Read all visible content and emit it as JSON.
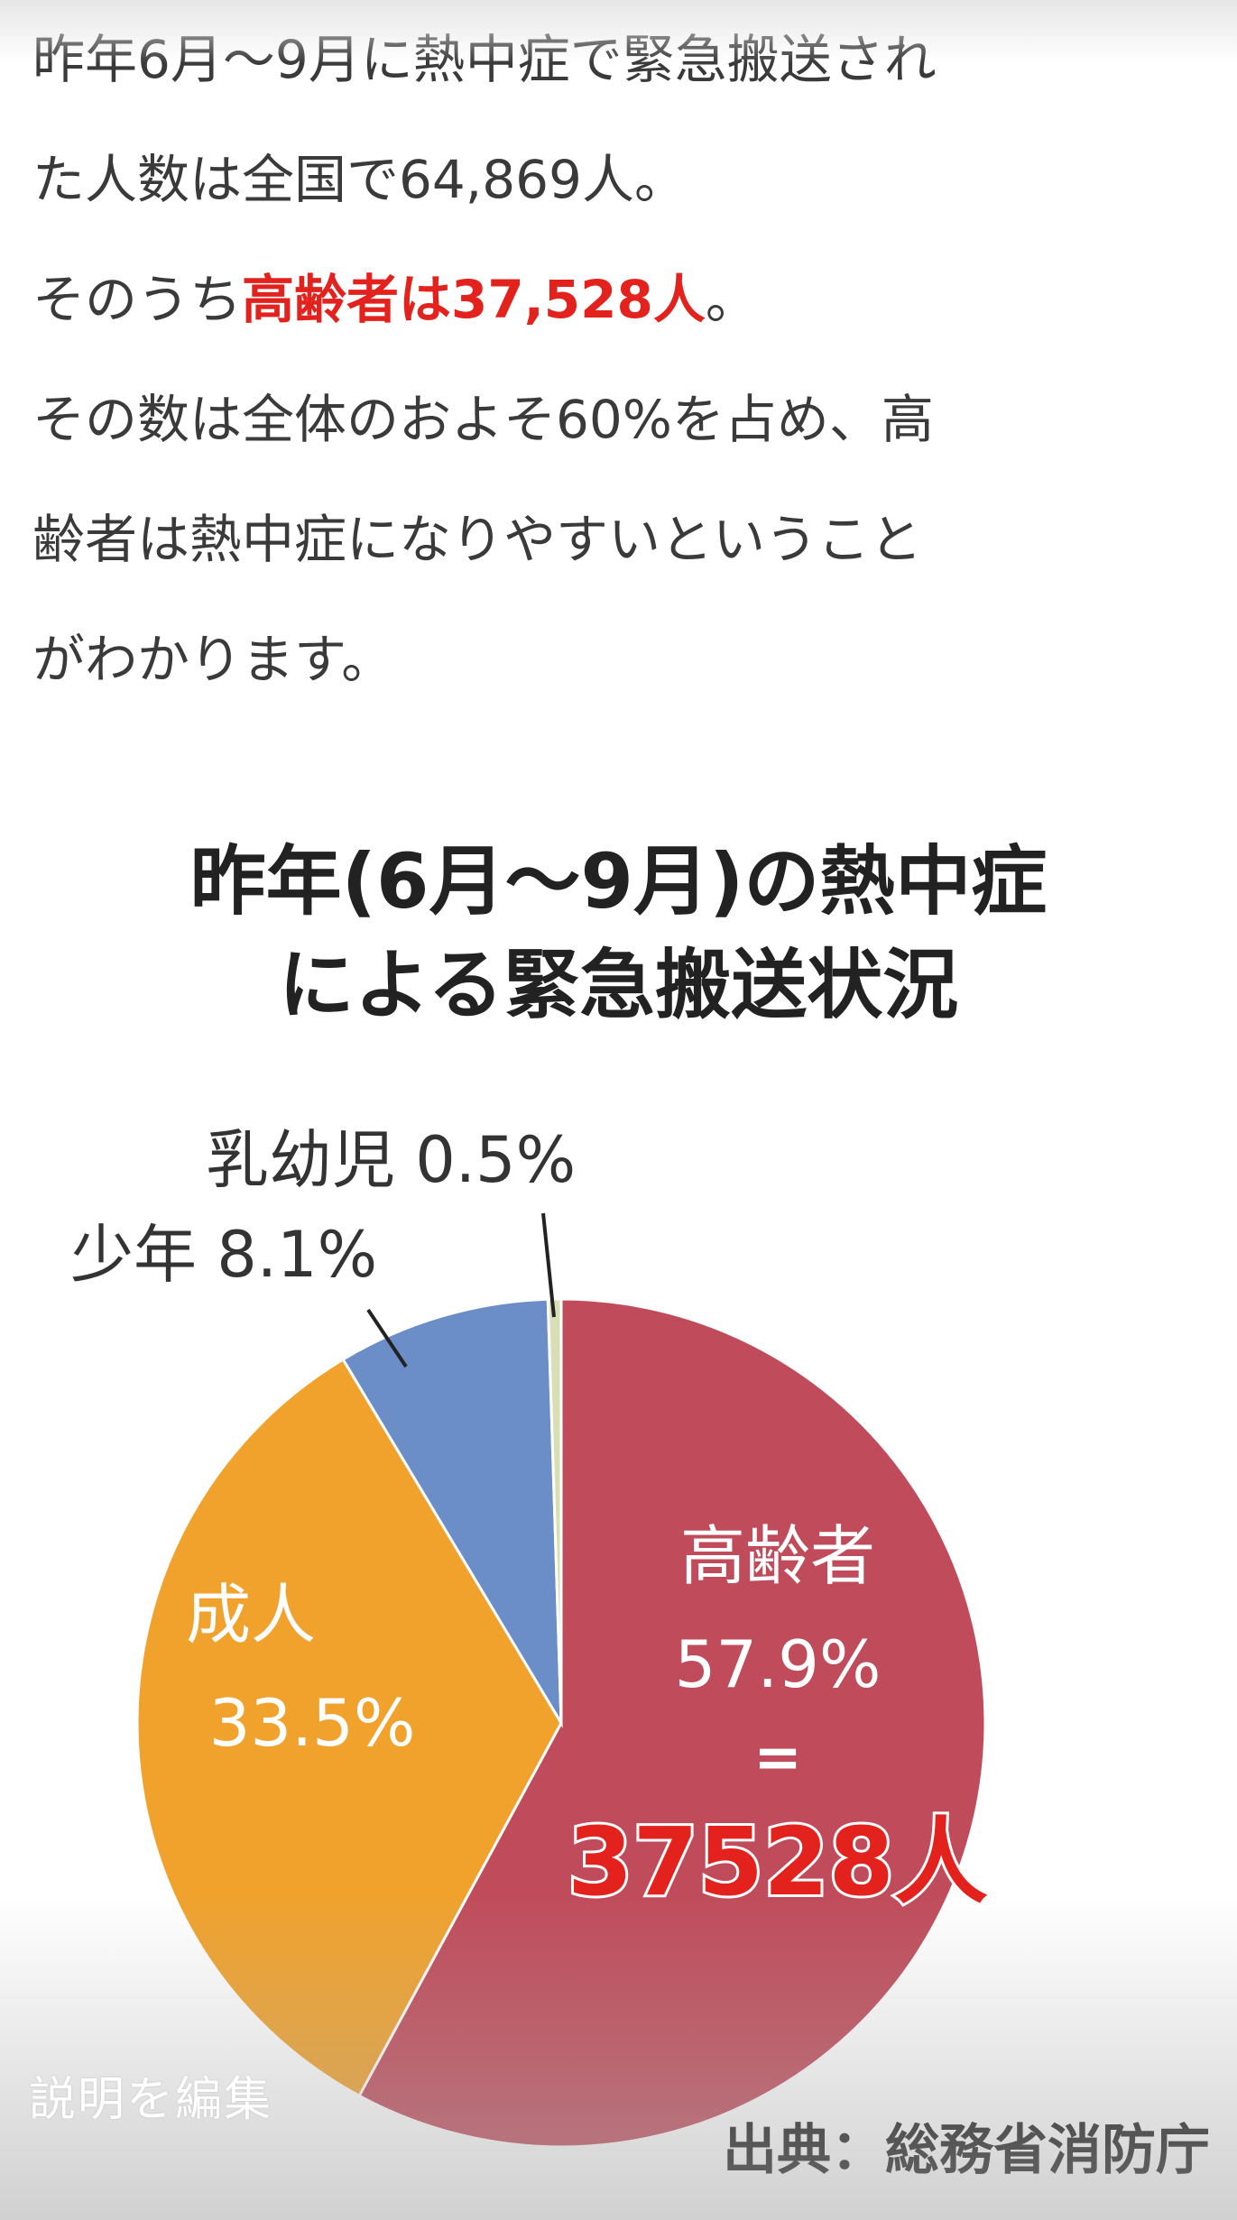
{
  "article": {
    "line1": "昨年6月〜9月に熱中症で緊急搬送され",
    "line2": "た人数は全国で64,869人。",
    "line3_pre": "そのうち",
    "line3_hl": "高齢者は37,528人",
    "line3_post": "。",
    "line4": "その数は全体のおよそ60%を占め、高",
    "line5": "齢者は熱中症になりやすいということ",
    "line6": "がわかります。"
  },
  "chart_data": {
    "type": "pie",
    "title_line1": "昨年(6月〜9月)の熱中症",
    "title_line2": "による緊急搬送状況",
    "slices": [
      {
        "label": "高齢者",
        "value": 57.9,
        "value_text": "57.9%",
        "color": "#c04c5b"
      },
      {
        "label": "成人",
        "value": 33.5,
        "value_text": "33.5%",
        "color": "#f0a22d"
      },
      {
        "label": "少年",
        "value": 8.1,
        "value_text": "8.1%",
        "color": "#6b8ec9"
      },
      {
        "label": "乳幼児",
        "value": 0.5,
        "value_text": "0.5%",
        "color": "#d9dfb4"
      }
    ],
    "annotation_equals": "=",
    "annotation_count": "37528人",
    "source": "出典：総務省消防庁"
  },
  "edit_caption": "説明を編集",
  "colors": {
    "highlight": "#e3211d",
    "count_text": "#e3211d"
  }
}
